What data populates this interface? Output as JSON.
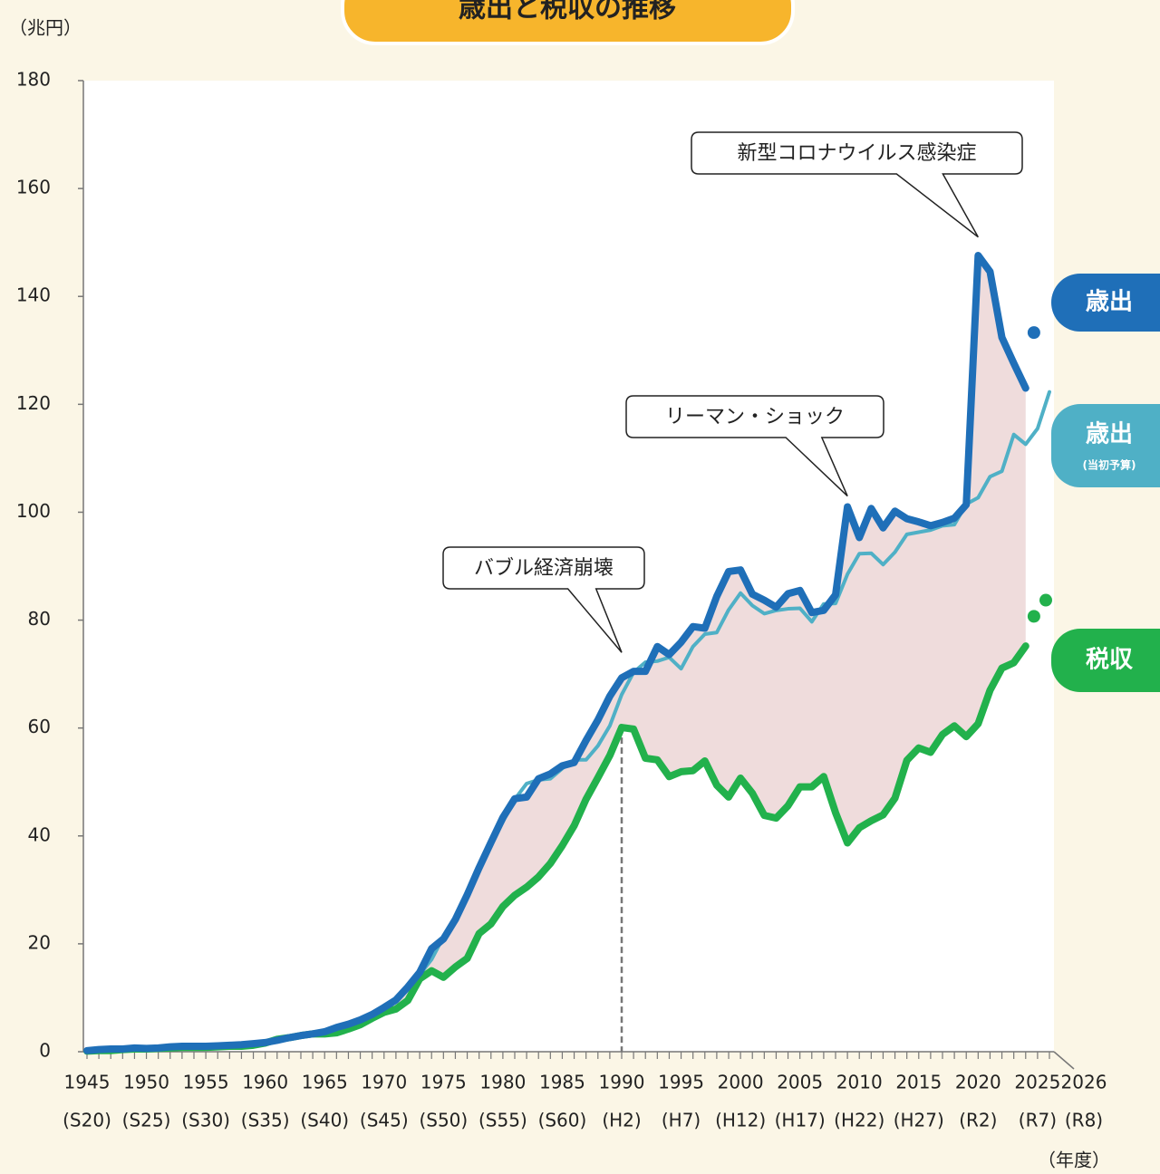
{
  "chart_data": {
    "type": "line",
    "title": "歳出と税収の推移",
    "y_label": "（兆円）",
    "x_label": "（年度）",
    "xlim": [
      1945,
      2026
    ],
    "ylim": [
      0,
      180
    ],
    "yticks": [
      0,
      20,
      40,
      60,
      80,
      100,
      120,
      140,
      160,
      180
    ],
    "xticks": [
      1945,
      1950,
      1955,
      1960,
      1965,
      1970,
      1975,
      1980,
      1985,
      1990,
      1995,
      2000,
      2005,
      2010,
      2015,
      2020,
      2025,
      2026
    ],
    "xtick_sublabels": [
      "(S20)",
      "(S25)",
      "(S30)",
      "(S35)",
      "(S40)",
      "(S45)",
      "(S50)",
      "(S55)",
      "(S60)",
      "(H2)",
      "(H7)",
      "(H12)",
      "(H17)",
      "(H22)",
      "(H27)",
      "(R2)",
      "(R7)",
      "(R8)"
    ],
    "x": [
      1945,
      1946,
      1947,
      1948,
      1949,
      1950,
      1951,
      1952,
      1953,
      1954,
      1955,
      1956,
      1957,
      1958,
      1959,
      1960,
      1961,
      1962,
      1963,
      1964,
      1965,
      1966,
      1967,
      1968,
      1969,
      1970,
      1971,
      1972,
      1973,
      1974,
      1975,
      1976,
      1977,
      1978,
      1979,
      1980,
      1981,
      1982,
      1983,
      1984,
      1985,
      1986,
      1987,
      1988,
      1989,
      1990,
      1991,
      1992,
      1993,
      1994,
      1995,
      1996,
      1997,
      1998,
      1999,
      2000,
      2001,
      2002,
      2003,
      2004,
      2005,
      2006,
      2007,
      2008,
      2009,
      2010,
      2011,
      2012,
      2013,
      2014,
      2015,
      2016,
      2017,
      2018,
      2019,
      2020,
      2021,
      2022,
      2023,
      2024,
      2025,
      2026
    ],
    "series": [
      {
        "name": "歳出",
        "color": "#1f6fb8",
        "values": [
          0.2,
          0.4,
          0.5,
          0.5,
          0.7,
          0.6,
          0.7,
          0.9,
          1.0,
          1.0,
          1.0,
          1.1,
          1.2,
          1.3,
          1.5,
          1.7,
          2.1,
          2.6,
          3.0,
          3.3,
          3.7,
          4.5,
          5.1,
          5.9,
          6.9,
          8.2,
          9.6,
          12.0,
          14.7,
          19.1,
          20.9,
          24.5,
          29.1,
          34.1,
          38.8,
          43.4,
          46.9,
          47.2,
          50.6,
          51.5,
          53.0,
          53.6,
          57.7,
          61.5,
          65.9,
          69.3,
          70.5,
          70.5,
          75.1,
          73.6,
          75.9,
          78.8,
          78.5,
          84.4,
          89.0,
          89.3,
          84.8,
          83.7,
          82.4,
          84.9,
          85.5,
          81.4,
          81.8,
          84.7,
          101.0,
          95.3,
          100.7,
          97.1,
          100.2,
          98.8,
          98.2,
          97.5,
          98.1,
          98.9,
          101.4,
          147.6,
          144.6,
          132.4,
          127.6,
          123.0,
          null,
          null
        ],
        "projection": {
          "x": [
            2025
          ],
          "values": [
            133.3
          ]
        }
      },
      {
        "name": "歳出",
        "note": "(当初予算)",
        "color": "#4fb0c6",
        "values": [
          0.2,
          0.3,
          0.4,
          0.5,
          0.7,
          0.7,
          0.7,
          0.9,
          1.0,
          1.0,
          1.0,
          1.0,
          1.1,
          1.3,
          1.4,
          1.6,
          2.0,
          2.4,
          2.9,
          3.3,
          3.7,
          4.3,
          4.9,
          5.8,
          6.7,
          7.9,
          9.4,
          11.5,
          14.3,
          17.1,
          21.3,
          24.3,
          28.5,
          34.3,
          38.6,
          42.6,
          46.8,
          49.7,
          50.4,
          50.6,
          52.5,
          54.1,
          54.1,
          56.7,
          60.4,
          66.2,
          70.3,
          72.2,
          72.4,
          73.1,
          71.0,
          75.1,
          77.4,
          77.7,
          81.9,
          85.0,
          82.7,
          81.2,
          81.8,
          82.1,
          82.2,
          79.7,
          83.0,
          83.1,
          88.5,
          92.3,
          92.4,
          90.3,
          92.6,
          95.9,
          96.3,
          96.7,
          97.5,
          97.7,
          101.5,
          102.7,
          106.6,
          107.6,
          114.4,
          112.6,
          115.5,
          122.3
        ]
      },
      {
        "name": "税収",
        "color": "#22b14c",
        "values": [
          0.1,
          0.2,
          0.2,
          0.4,
          0.5,
          0.5,
          0.6,
          0.7,
          0.8,
          0.8,
          0.8,
          0.9,
          1.0,
          1.0,
          1.2,
          1.6,
          2.3,
          2.6,
          3.0,
          3.3,
          3.3,
          3.5,
          4.2,
          5.0,
          6.2,
          7.3,
          7.9,
          9.5,
          13.5,
          15.0,
          13.8,
          15.7,
          17.3,
          21.9,
          23.7,
          26.9,
          29.0,
          30.5,
          32.4,
          34.9,
          38.2,
          41.9,
          46.8,
          50.8,
          54.9,
          60.1,
          59.8,
          54.4,
          54.1,
          51.0,
          51.9,
          52.1,
          53.9,
          49.4,
          47.2,
          50.7,
          47.9,
          43.8,
          43.3,
          45.6,
          49.1,
          49.1,
          51.0,
          44.3,
          38.7,
          41.5,
          42.8,
          43.9,
          47.0,
          54.0,
          56.3,
          55.5,
          58.8,
          60.4,
          58.4,
          60.8,
          67.0,
          71.1,
          72.1,
          75.2,
          null,
          null
        ],
        "projection": {
          "x": [
            2025,
            2026
          ],
          "values": [
            80.7,
            83.7
          ]
        }
      }
    ],
    "fill_color": "#efdcdc",
    "reference_line_x": 1990,
    "annotations": [
      {
        "text": "バブル経済崩壊",
        "x": 1990,
        "y": 74
      },
      {
        "text": "リーマン・ショック",
        "x": 2009,
        "y": 103
      },
      {
        "text": "新型コロナウイルス感染症",
        "x": 2020,
        "y": 151
      }
    ]
  }
}
